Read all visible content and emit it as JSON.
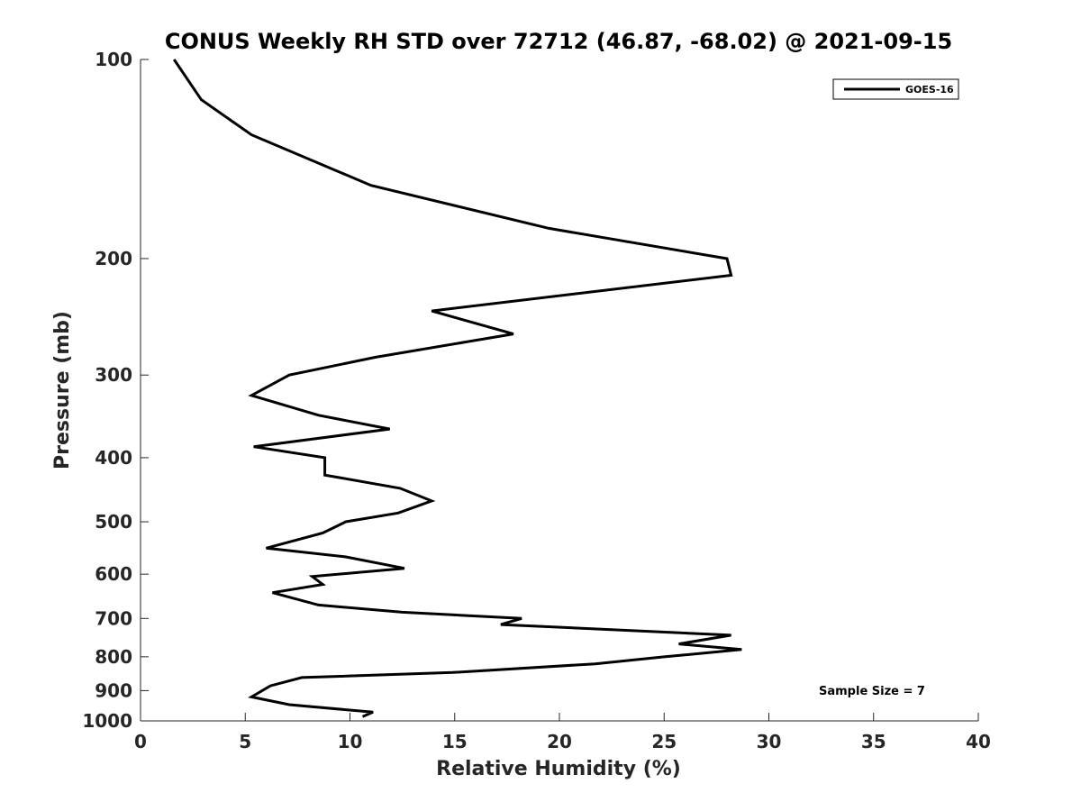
{
  "chart_data": {
    "type": "line",
    "title": "CONUS Weekly RH STD over 72712 (46.87, -68.02) @ 2021-09-15",
    "xlabel": "Relative Humidity (%)",
    "ylabel": "Pressure (mb)",
    "xlim": [
      0,
      40
    ],
    "ylim": [
      100,
      1000
    ],
    "y_scale": "log",
    "y_reversed": true,
    "x_ticks": [
      "0",
      "5",
      "10",
      "15",
      "20",
      "25",
      "30",
      "35",
      "40"
    ],
    "y_ticks": [
      "100",
      "200",
      "300",
      "400",
      "500",
      "600",
      "700",
      "800",
      "900",
      "1000"
    ],
    "grid": false,
    "legend_position": "top-right",
    "annotation": "Sample Size = 7",
    "series": [
      {
        "name": "GOES-16",
        "color": "#000000",
        "points": [
          [
            1.6,
            100
          ],
          [
            2.9,
            115
          ],
          [
            5.3,
            130
          ],
          [
            11.0,
            155
          ],
          [
            19.5,
            180
          ],
          [
            28.0,
            200
          ],
          [
            28.2,
            212
          ],
          [
            13.9,
            240
          ],
          [
            17.8,
            260
          ],
          [
            11.2,
            282
          ],
          [
            7.1,
            300
          ],
          [
            5.3,
            322
          ],
          [
            8.5,
            345
          ],
          [
            11.9,
            362
          ],
          [
            5.4,
            385
          ],
          [
            8.8,
            400
          ],
          [
            8.8,
            425
          ],
          [
            12.4,
            445
          ],
          [
            13.9,
            465
          ],
          [
            12.3,
            485
          ],
          [
            9.8,
            500
          ],
          [
            8.7,
            520
          ],
          [
            6.0,
            548
          ],
          [
            9.8,
            565
          ],
          [
            12.6,
            588
          ],
          [
            8.2,
            605
          ],
          [
            8.7,
            622
          ],
          [
            6.3,
            640
          ],
          [
            8.5,
            668
          ],
          [
            12.5,
            685
          ],
          [
            18.2,
            700
          ],
          [
            17.2,
            715
          ],
          [
            28.2,
            742
          ],
          [
            25.7,
            765
          ],
          [
            28.7,
            780
          ],
          [
            25.0,
            800
          ],
          [
            21.7,
            820
          ],
          [
            14.9,
            845
          ],
          [
            7.7,
            860
          ],
          [
            6.2,
            885
          ],
          [
            5.3,
            920
          ],
          [
            7.1,
            945
          ],
          [
            11.1,
            970
          ],
          [
            10.6,
            985
          ]
        ]
      }
    ]
  }
}
